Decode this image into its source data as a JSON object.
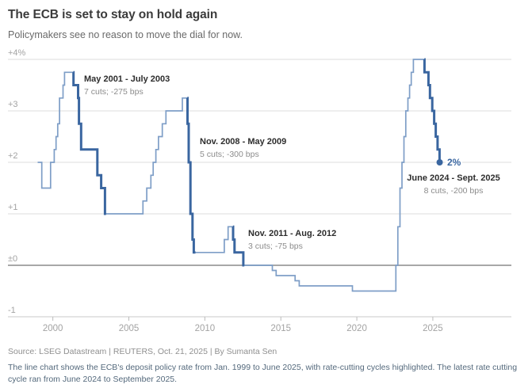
{
  "header": {
    "title": "The ECB is set to stay on hold again",
    "subtitle": "Policymakers see no reason to move the dial for now."
  },
  "chart_data": {
    "type": "line",
    "title": "ECB deposit policy rate, Jan. 1999 to June 2025",
    "line_style": "step",
    "x_range": [
      1999,
      2025.45
    ],
    "y_range": [
      -1,
      4
    ],
    "x_ticks": [
      2000,
      2005,
      2010,
      2015,
      2020,
      2025
    ],
    "y_ticks": [
      {
        "value": 4,
        "label": "+4%"
      },
      {
        "value": 3,
        "label": "+3"
      },
      {
        "value": 2,
        "label": "+2"
      },
      {
        "value": 1,
        "label": "+1"
      },
      {
        "value": 0,
        "label": "±0",
        "emphasis": "zero"
      },
      {
        "value": -1,
        "label": "-1",
        "emphasis": "axis"
      }
    ],
    "series": [
      {
        "name": "ECB deposit rate (%)",
        "points": [
          [
            1999.0,
            2.0
          ],
          [
            1999.27,
            1.5
          ],
          [
            1999.85,
            2.0
          ],
          [
            2000.09,
            2.25
          ],
          [
            2000.21,
            2.5
          ],
          [
            2000.32,
            2.75
          ],
          [
            2000.44,
            3.25
          ],
          [
            2000.67,
            3.5
          ],
          [
            2000.77,
            3.75
          ],
          [
            2001.36,
            3.5
          ],
          [
            2001.66,
            3.25
          ],
          [
            2001.72,
            2.75
          ],
          [
            2001.86,
            2.25
          ],
          [
            2002.93,
            1.75
          ],
          [
            2003.18,
            1.5
          ],
          [
            2003.43,
            1.0
          ],
          [
            2005.93,
            1.25
          ],
          [
            2006.18,
            1.5
          ],
          [
            2006.45,
            1.75
          ],
          [
            2006.6,
            2.0
          ],
          [
            2006.78,
            2.25
          ],
          [
            2006.95,
            2.5
          ],
          [
            2007.2,
            2.75
          ],
          [
            2007.44,
            3.0
          ],
          [
            2008.52,
            3.25
          ],
          [
            2008.86,
            2.75
          ],
          [
            2008.94,
            2.0
          ],
          [
            2009.05,
            1.0
          ],
          [
            2009.19,
            0.5
          ],
          [
            2009.27,
            0.25
          ],
          [
            2011.28,
            0.5
          ],
          [
            2011.53,
            0.75
          ],
          [
            2011.86,
            0.5
          ],
          [
            2011.95,
            0.25
          ],
          [
            2012.53,
            0.0
          ],
          [
            2014.44,
            -0.1
          ],
          [
            2014.69,
            -0.2
          ],
          [
            2015.94,
            -0.3
          ],
          [
            2016.21,
            -0.4
          ],
          [
            2019.71,
            -0.5
          ],
          [
            2022.57,
            0.0
          ],
          [
            2022.7,
            0.75
          ],
          [
            2022.84,
            1.5
          ],
          [
            2022.97,
            2.0
          ],
          [
            2023.1,
            2.5
          ],
          [
            2023.22,
            3.0
          ],
          [
            2023.36,
            3.25
          ],
          [
            2023.47,
            3.5
          ],
          [
            2023.58,
            3.75
          ],
          [
            2023.72,
            4.0
          ],
          [
            2024.45,
            3.75
          ],
          [
            2024.71,
            3.5
          ],
          [
            2024.81,
            3.25
          ],
          [
            2024.96,
            3.0
          ],
          [
            2025.09,
            2.75
          ],
          [
            2025.19,
            2.5
          ],
          [
            2025.31,
            2.25
          ],
          [
            2025.44,
            2.0
          ]
        ]
      }
    ],
    "highlight_cycles": [
      {
        "start": 2001.35,
        "end": 2003.5,
        "title": "May 2001 - July 2003",
        "subtitle": "7 cuts; -275 bps"
      },
      {
        "start": 2008.85,
        "end": 2009.38,
        "title": "Nov. 2008 - May 2009",
        "subtitle": "5 cuts; -300 bps"
      },
      {
        "start": 2011.85,
        "end": 2012.6,
        "title": "Nov. 2011 - Aug. 2012",
        "subtitle": "3 cuts; -75 bps"
      },
      {
        "start": 2024.44,
        "end": 2025.45,
        "title": "June 2024 - Sept. 2025",
        "subtitle": "8 cuts, -200 bps"
      }
    ],
    "end_point": {
      "x": 2025.45,
      "y": 2.0,
      "label": "2%"
    },
    "colors": {
      "line_light": "#7e9ec7",
      "line_dark": "#3a66a0",
      "grid": "#dedede",
      "zero_line": "#9b9b9b",
      "axis_line": "#c9c9c9",
      "tick": "#bbbbbb",
      "axis_text": "#a3a3a3"
    }
  },
  "footer": {
    "source": "Source: LSEG Datastream | REUTERS, Oct. 21, 2025 | By Sumanta Sen",
    "note": "The line chart shows the ECB's deposit policy rate from Jan. 1999 to June 2025, with rate-cutting cycles highlighted. The latest rate cutting cycle ran from June 2024 to September 2025."
  }
}
